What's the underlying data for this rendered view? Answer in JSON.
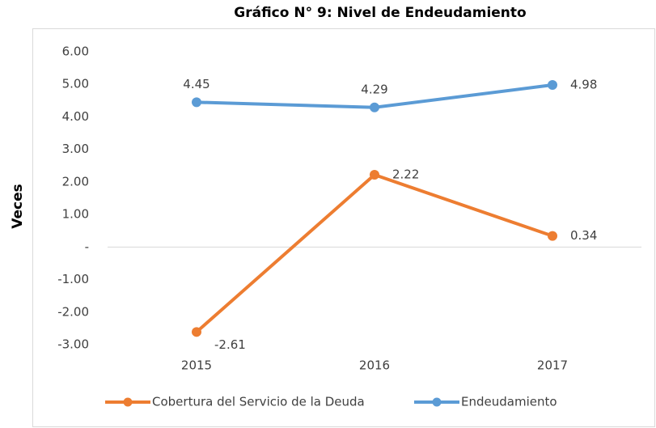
{
  "chart_data": {
    "type": "line",
    "title": "Gráfico N° 9: Nivel de Endeudamiento",
    "y_label": "Veces",
    "categories": [
      "2015",
      "2016",
      "2017"
    ],
    "series": [
      {
        "name": "Cobertura del Servicio de la Deuda",
        "color": "#ed7d31",
        "values": [
          -2.61,
          2.22,
          0.34
        ]
      },
      {
        "name": "Endeudamiento",
        "color": "#5b9bd5",
        "values": [
          4.45,
          4.29,
          4.98
        ]
      }
    ],
    "ylim": [
      -3,
      6
    ],
    "yticks": [
      {
        "value": 6,
        "label": "6.00"
      },
      {
        "value": 5,
        "label": "5.00"
      },
      {
        "value": 4,
        "label": "4.00"
      },
      {
        "value": 3,
        "label": "3.00"
      },
      {
        "value": 2,
        "label": "2.00"
      },
      {
        "value": 1,
        "label": "1.00"
      },
      {
        "value": 0,
        "label": "-"
      },
      {
        "value": -1,
        "label": "-1.00"
      },
      {
        "value": -2,
        "label": "-2.00"
      },
      {
        "value": -3,
        "label": "-3.00"
      }
    ],
    "grid": false,
    "legend": "bottom"
  }
}
